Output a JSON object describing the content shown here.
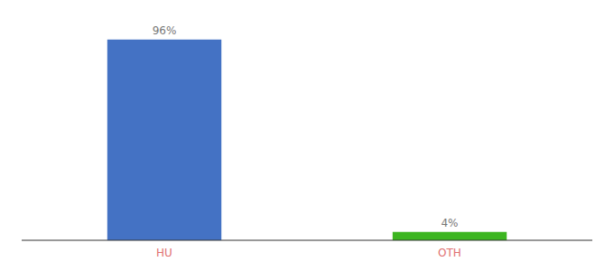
{
  "chart_data": {
    "type": "bar",
    "categories": [
      "HU",
      "OTH"
    ],
    "values": [
      96,
      4
    ],
    "value_labels": [
      "96%",
      "4%"
    ],
    "colors": [
      "#4472c4",
      "#3cb520"
    ],
    "ylim": [
      0,
      108
    ],
    "data_labels": true,
    "tick_labels": "x",
    "grid": false
  }
}
